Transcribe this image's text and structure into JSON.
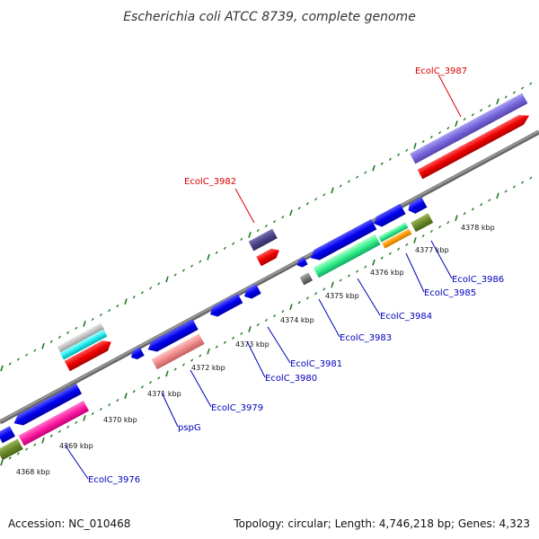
{
  "title": "Escherichia coli ATCC 8739, complete genome",
  "footer": {
    "accession": "Accession: NC_010468",
    "summary": "Topology: circular; Length: 4,746,218 bp; Genes: 4,323"
  },
  "colors": {
    "backbone": "#808080",
    "ruler_tick": "#1f7a1f",
    "forward_label": "#dd0000",
    "reverse_label": "#0000bb"
  },
  "scale_labels": [
    {
      "pos": 4368,
      "label": "4368 kbp"
    },
    {
      "pos": 4369,
      "label": "4369 kbp"
    },
    {
      "pos": 4370,
      "label": "4370 kbp"
    },
    {
      "pos": 4371,
      "label": "4371 kbp"
    },
    {
      "pos": 4372,
      "label": "4372 kbp"
    },
    {
      "pos": 4373,
      "label": "4373 kbp"
    },
    {
      "pos": 4374,
      "label": "4374 kbp"
    },
    {
      "pos": 4375,
      "label": "4375 kbp"
    },
    {
      "pos": 4376,
      "label": "4376 kbp"
    },
    {
      "pos": 4377,
      "label": "4377 kbp"
    },
    {
      "pos": 4378,
      "label": "4378 kbp"
    }
  ],
  "gene_labels": [
    {
      "text": "EcolC_3987",
      "strand": "forward"
    },
    {
      "text": "EcolC_3982",
      "strand": "forward"
    },
    {
      "text": "EcolC_3986",
      "strand": "reverse"
    },
    {
      "text": "EcolC_3985",
      "strand": "reverse"
    },
    {
      "text": "EcolC_3984",
      "strand": "reverse"
    },
    {
      "text": "EcolC_3983",
      "strand": "reverse"
    },
    {
      "text": "EcolC_3981",
      "strand": "reverse"
    },
    {
      "text": "EcolC_3980",
      "strand": "reverse"
    },
    {
      "text": "EcolC_3979",
      "strand": "reverse"
    },
    {
      "text": "pspG",
      "strand": "reverse"
    },
    {
      "text": "EcolC_3976",
      "strand": "reverse"
    }
  ]
}
